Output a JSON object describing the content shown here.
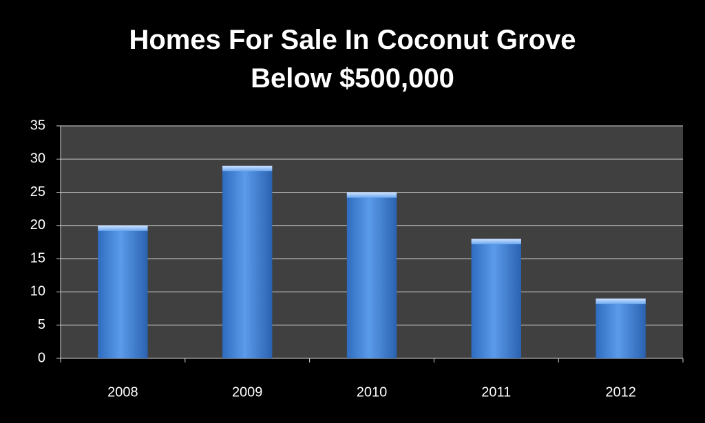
{
  "chart_data": {
    "type": "bar",
    "title": "Homes For Sale In Coconut Grove Below $500,000",
    "categories": [
      "2008",
      "2009",
      "2010",
      "2011",
      "2012"
    ],
    "values": [
      20,
      29,
      25,
      18,
      9
    ],
    "color": "#4a86d8",
    "ylim": [
      0,
      35
    ],
    "yticks": [
      0,
      5,
      10,
      15,
      20,
      25,
      30,
      35
    ],
    "grid": true
  }
}
